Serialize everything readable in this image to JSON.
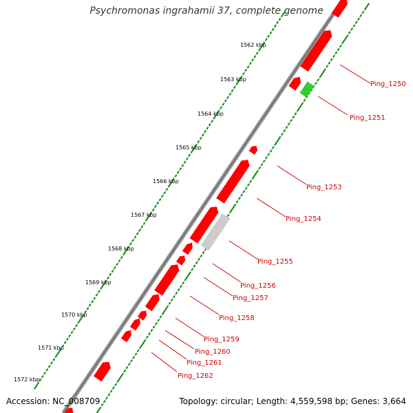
{
  "title": "Psychromonas ingrahamii 37, complete genome",
  "footer_left": "Accession: NC_008709",
  "footer_right": "Topology: circular; Length: 4,559,598 bp; Genes: 3,664",
  "colors": {
    "cds": "#ff0000",
    "highlight": "#33cc33",
    "other": "#cccccc",
    "label": "#cc0000",
    "tick": "#228b22"
  },
  "scale_labels": [
    "1562 kbp",
    "1563 kbp",
    "1564 kbp",
    "1565 kbp",
    "1566 kbp",
    "1567 kbp",
    "1568 kbp",
    "1569 kbp",
    "1570 kbp",
    "1571 kbp",
    "1572 kbp"
  ],
  "genes": [
    "Ping_1250",
    "Ping_1251",
    "Ping_1253",
    "Ping_1254",
    "Ping_1255",
    "Ping_1256",
    "Ping_1257",
    "Ping_1258",
    "Ping_1259",
    "Ping_1260",
    "Ping_1261",
    "Ping_1262"
  ]
}
